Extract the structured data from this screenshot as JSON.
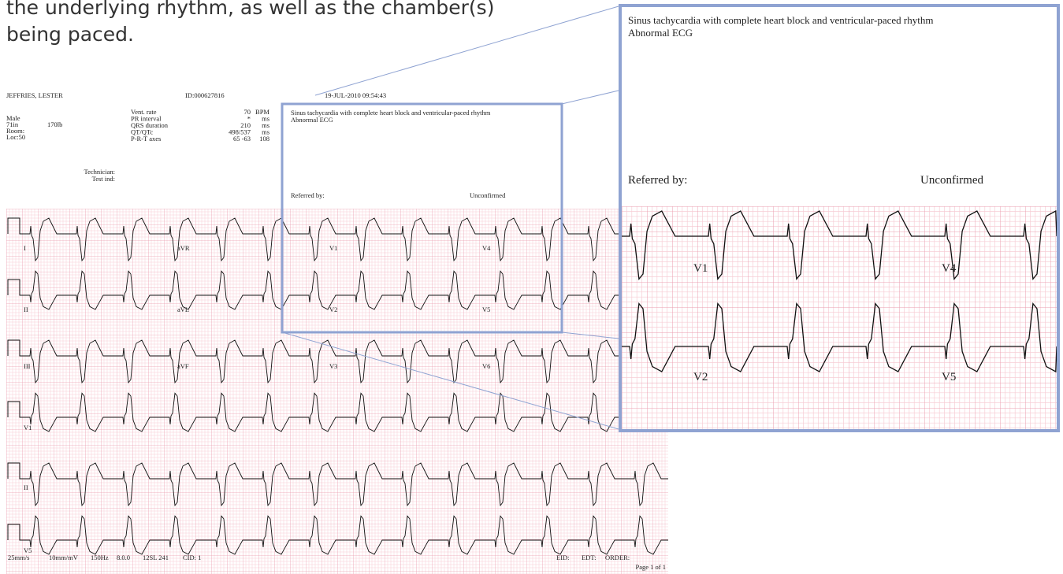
{
  "caption": {
    "lines": [
      "the underlying rhythm, as well as the chamber(s)",
      "being paced."
    ]
  },
  "ecg": {
    "patient": "JEFFRIES, LESTER",
    "id": "ID:000627816",
    "datetime": "19-JUL-2010 09:54:43",
    "demographics": {
      "sex": "Male",
      "height": "71in",
      "weight": "170lb",
      "room": "Room:",
      "location": "Loc:50"
    },
    "measurements": [
      {
        "label": "Vent. rate",
        "value": "70",
        "unit": "BPM"
      },
      {
        "label": "PR interval",
        "value": "*",
        "unit": "ms"
      },
      {
        "label": "QRS duration",
        "value": "210",
        "unit": "ms"
      },
      {
        "label": "QT/QTc",
        "value": "498/537",
        "unit": "ms"
      },
      {
        "label": "P-R-T axes",
        "value": "65 -63",
        "unit": "108"
      }
    ],
    "technician": "Technician:",
    "test_ind": "Test ind:",
    "interpretation": [
      "Sinus tachycardia with complete heart block and ventricular-paced rhythm",
      "Abnormal ECG"
    ],
    "referred_by": "Referred by:",
    "status": "Unconfirmed",
    "lead_rows": [
      [
        "I",
        "aVR",
        "V1",
        "V4"
      ],
      [
        "II",
        "aVL",
        "V2",
        "V5"
      ],
      [
        "III",
        "aVF",
        "V3",
        "V6"
      ],
      [
        "V1"
      ],
      [
        "II"
      ],
      [
        "V5"
      ]
    ],
    "footer": [
      "25mm/s",
      "10mm/mV",
      "150Hz",
      "8.0.0",
      "12SL 241",
      "CID: 1"
    ],
    "footer_right": [
      "EID:",
      "EDT:",
      "ORDER:"
    ],
    "page": "Page 1 of 1"
  },
  "zoom": {
    "interpretation": [
      "Sinus tachycardia with complete heart block and ventricular-paced rhythm",
      "Abnormal ECG"
    ],
    "referred_by": "Referred by:",
    "status": "Unconfirmed",
    "lead_rows": [
      [
        "V1",
        "V4"
      ],
      [
        "V2",
        "V5"
      ]
    ]
  }
}
